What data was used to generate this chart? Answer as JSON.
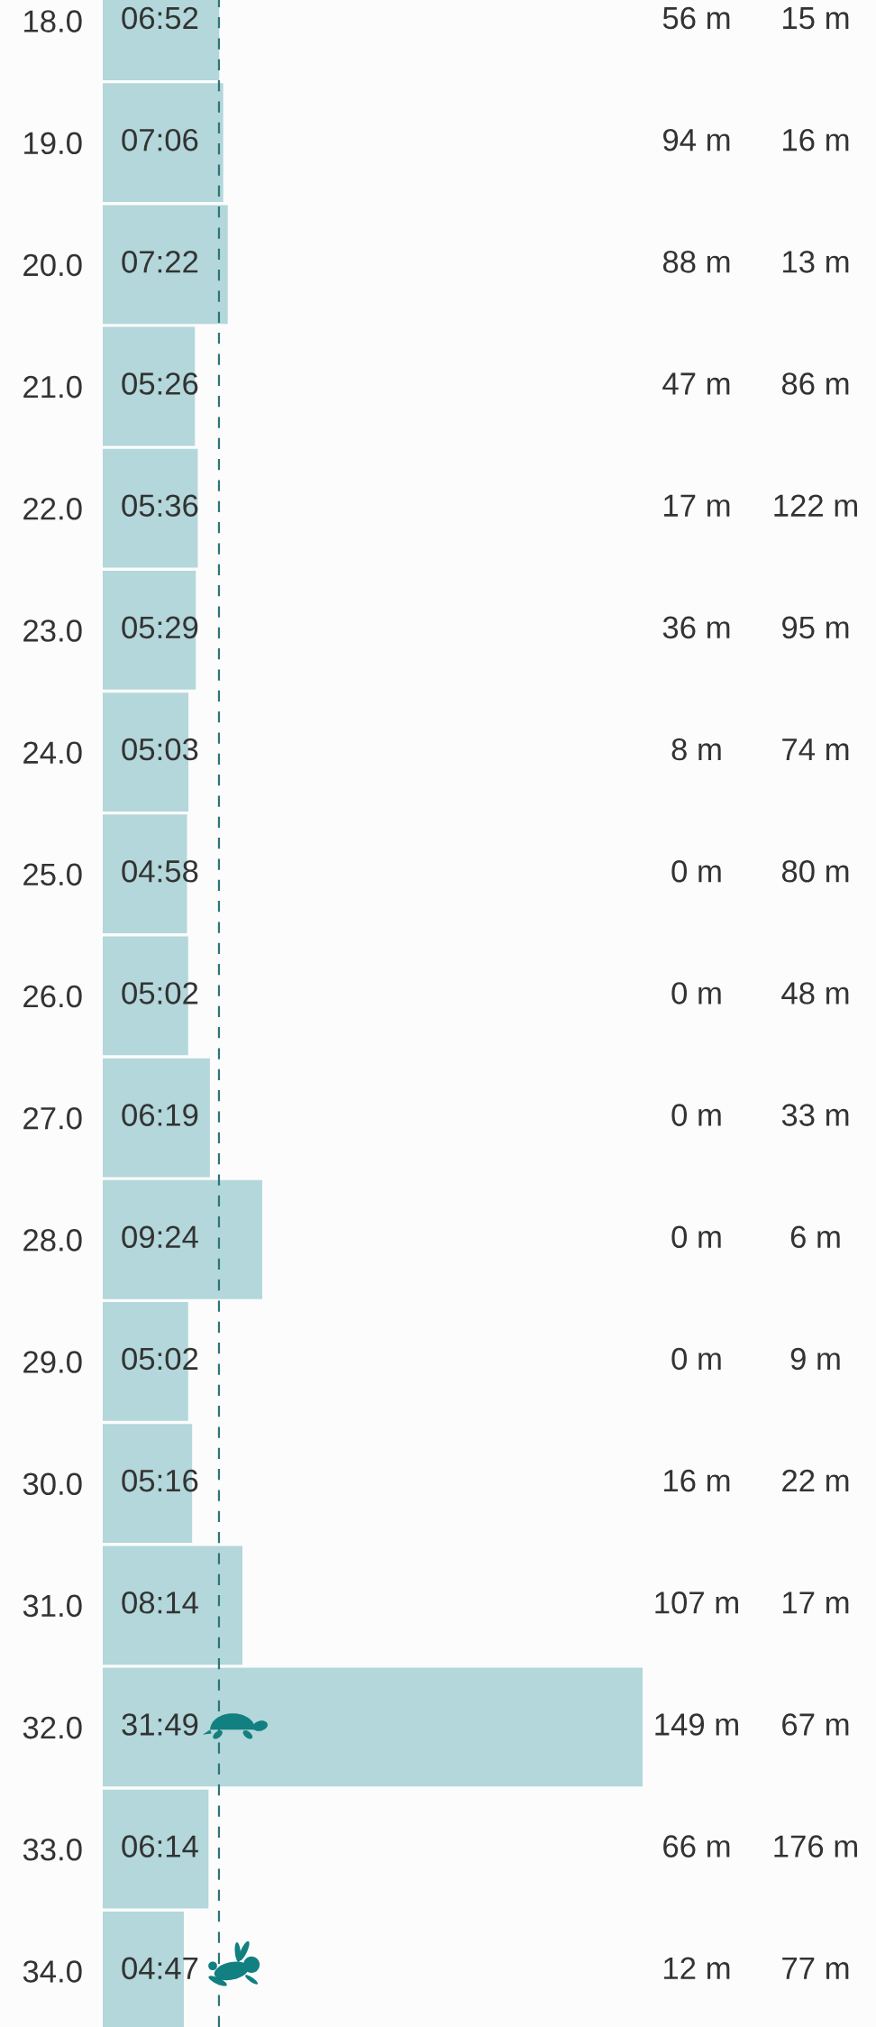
{
  "chart_data": [
    {
      "type": "bar",
      "orientation": "horizontal",
      "tick_labels": "y",
      "categories": [
        "18.0",
        "19.0",
        "20.0",
        "21.0",
        "22.0",
        "23.0",
        "24.0",
        "25.0",
        "26.0",
        "27.0",
        "28.0",
        "29.0",
        "30.0",
        "31.0",
        "32.0",
        "33.0",
        "34.0"
      ],
      "series": [
        {
          "color": "#b3d7da",
          "values": [
            6.867,
            7.1,
            7.367,
            5.433,
            5.6,
            5.483,
            5.05,
            4.967,
            5.033,
            6.317,
            9.4,
            5.033,
            5.267,
            8.233,
            31.817,
            6.233,
            4.783
          ],
          "value_labels": [
            "06:52",
            "07:06",
            "07:22",
            "05:26",
            "05:36",
            "05:29",
            "05:03",
            "04:58",
            "05:02",
            "06:19",
            "09:24",
            "05:02",
            "05:16",
            "08:14",
            "31:49",
            "06:14",
            "04:47"
          ]
        }
      ],
      "ref_lines": [
        {
          "axis": "x",
          "value": 6.85,
          "color": "#2f7478",
          "line_style": "dashed"
        }
      ]
    },
    {
      "type": "other",
      "annotations": [
        "56 m",
        "15 m",
        "94 m",
        "16 m",
        "88 m",
        "13 m",
        "47 m",
        "86 m",
        "17 m",
        "122 m",
        "36 m",
        "95 m",
        "8 m",
        "74 m",
        "0 m",
        "80 m",
        "0 m",
        "48 m",
        "0 m",
        "33 m",
        "0 m",
        "6 m",
        "0 m",
        "9 m",
        "16 m",
        "22 m",
        "107 m",
        "17 m",
        "149 m",
        "67 m",
        "66 m",
        "176 m",
        "12 m",
        "77 m"
      ]
    }
  ]
}
